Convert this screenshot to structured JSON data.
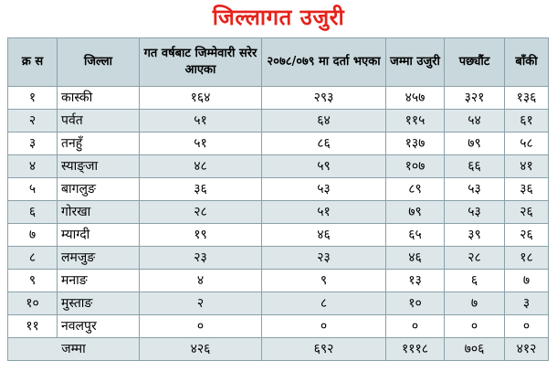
{
  "title": "जिल्लागत उजुरी",
  "headers": {
    "sn": "क्र स",
    "district": "जिल्ला",
    "carried": "गत वर्षबाट जिम्मेवारी सरेर आएका",
    "registered": "२०७८/०७९ मा दर्ता भएका",
    "total": "जम्मा उजुरी",
    "settled": "पछ्यौंट",
    "remaining": "बाँकी"
  },
  "rows": [
    {
      "sn": "१",
      "district": "कास्की",
      "carried": "१६४",
      "registered": "२९३",
      "total": "४५७",
      "settled": "३२१",
      "remaining": "१३६"
    },
    {
      "sn": "२",
      "district": "पर्वत",
      "carried": "५१",
      "registered": "६४",
      "total": "११५",
      "settled": "५४",
      "remaining": "६१"
    },
    {
      "sn": "३",
      "district": "तनहुँ",
      "carried": "५१",
      "registered": "८६",
      "total": "१३७",
      "settled": "७९",
      "remaining": "५८"
    },
    {
      "sn": "४",
      "district": "स्याङ्जा",
      "carried": "४८",
      "registered": "५९",
      "total": "१०७",
      "settled": "६६",
      "remaining": "४१"
    },
    {
      "sn": "५",
      "district": "बागलुङ",
      "carried": "३६",
      "registered": "५३",
      "total": "८९",
      "settled": "५३",
      "remaining": "३६"
    },
    {
      "sn": "६",
      "district": "गोरखा",
      "carried": "२८",
      "registered": "५१",
      "total": "७९",
      "settled": "५३",
      "remaining": "२६"
    },
    {
      "sn": "७",
      "district": "म्याग्दी",
      "carried": "१९",
      "registered": "४६",
      "total": "६५",
      "settled": "३९",
      "remaining": "२६"
    },
    {
      "sn": "८",
      "district": "लमजुङ",
      "carried": "२३",
      "registered": "२३",
      "total": "४६",
      "settled": "२८",
      "remaining": "१८"
    },
    {
      "sn": "९",
      "district": "मनाङ",
      "carried": "४",
      "registered": "९",
      "total": "१३",
      "settled": "६",
      "remaining": "७"
    },
    {
      "sn": "१०",
      "district": "मुस्ताङ",
      "carried": "२",
      "registered": "८",
      "total": "१०",
      "settled": "७",
      "remaining": "३"
    },
    {
      "sn": "११",
      "district": "नवलपुर",
      "carried": "०",
      "registered": "०",
      "total": "०",
      "settled": "०",
      "remaining": "०"
    }
  ],
  "totals": {
    "label": "जम्मा",
    "carried": "४२६",
    "registered": "६९२",
    "total": "१११८",
    "settled": "७०६",
    "remaining": "४१२"
  }
}
